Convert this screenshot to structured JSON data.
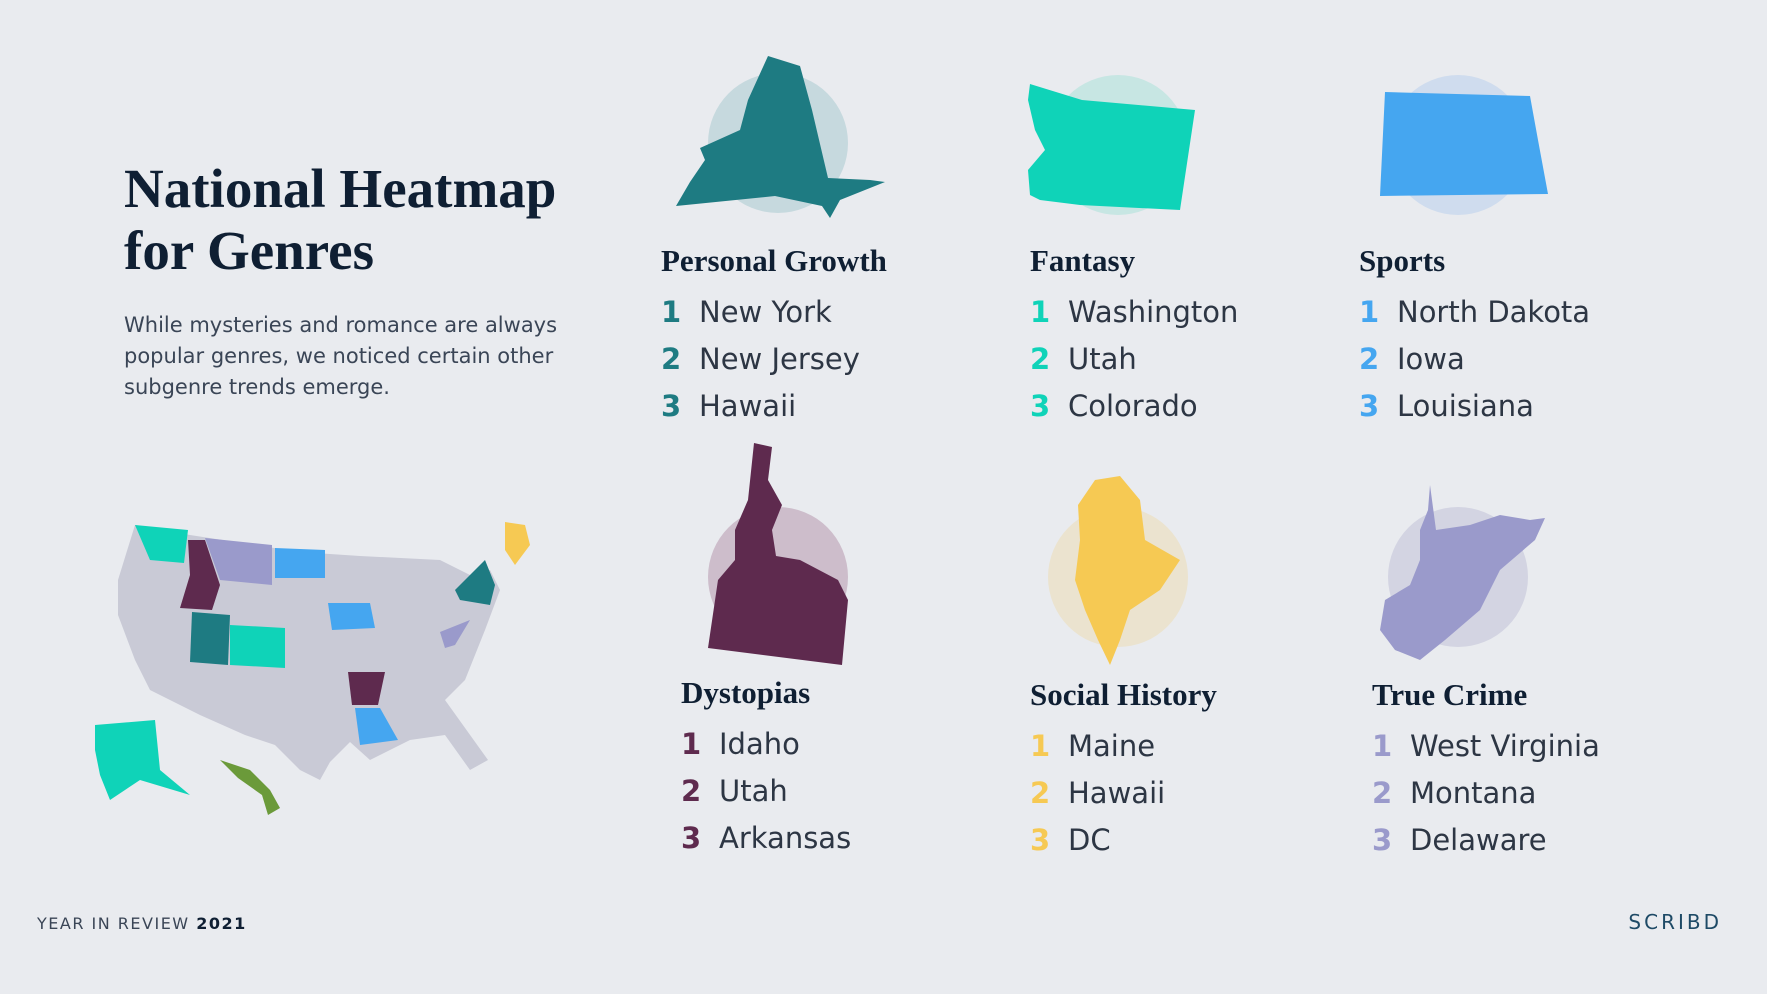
{
  "header": {
    "title": "National Heatmap for Genres",
    "description": "While mysteries and romance are always popular genres, we noticed certain other subgenre trends emerge."
  },
  "genres": [
    {
      "title": "Personal Growth",
      "color": "#1e7b82",
      "items": [
        {
          "rank": 1,
          "state": "New York"
        },
        {
          "rank": 2,
          "state": "New Jersey"
        },
        {
          "rank": 3,
          "state": "Hawaii"
        }
      ]
    },
    {
      "title": "Fantasy",
      "color": "#0fd3b8",
      "items": [
        {
          "rank": 1,
          "state": "Washington"
        },
        {
          "rank": 2,
          "state": "Utah"
        },
        {
          "rank": 3,
          "state": "Colorado"
        }
      ]
    },
    {
      "title": "Sports",
      "color": "#45a6f0",
      "items": [
        {
          "rank": 1,
          "state": "North Dakota"
        },
        {
          "rank": 2,
          "state": "Iowa"
        },
        {
          "rank": 3,
          "state": "Louisiana"
        }
      ]
    },
    {
      "title": "Dystopias",
      "color": "#5e2a4e",
      "items": [
        {
          "rank": 1,
          "state": "Idaho"
        },
        {
          "rank": 2,
          "state": "Utah"
        },
        {
          "rank": 3,
          "state": "Arkansas"
        }
      ]
    },
    {
      "title": "Social History",
      "color": "#f6c953",
      "items": [
        {
          "rank": 1,
          "state": "Maine"
        },
        {
          "rank": 2,
          "state": "Hawaii"
        },
        {
          "rank": 3,
          "state": "DC"
        }
      ]
    },
    {
      "title": "True Crime",
      "color": "#9a9acb",
      "items": [
        {
          "rank": 1,
          "state": "West Virginia"
        },
        {
          "rank": 2,
          "state": "Montana"
        },
        {
          "rank": 3,
          "state": "Delaware"
        }
      ]
    }
  ],
  "footer": {
    "label": "YEAR IN REVIEW",
    "year": "2021",
    "brand": "SCRIBD"
  }
}
